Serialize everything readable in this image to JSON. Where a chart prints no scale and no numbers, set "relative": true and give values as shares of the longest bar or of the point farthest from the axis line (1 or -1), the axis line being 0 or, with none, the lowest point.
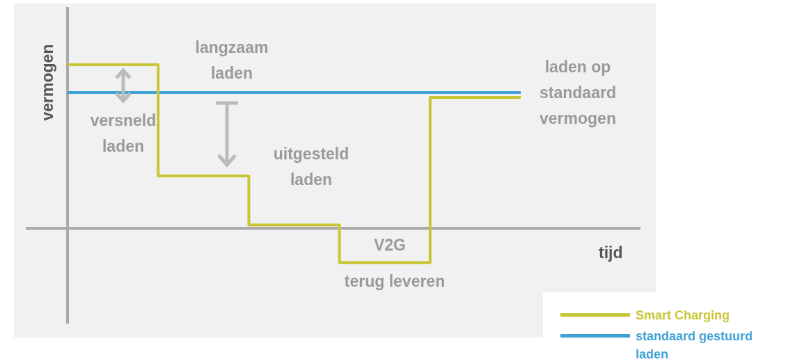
{
  "chart_data": {
    "type": "step",
    "relative": true,
    "xlabel": "tijd",
    "ylabel": "vermogen",
    "categories": [
      null,
      null,
      null,
      null,
      null,
      null
    ],
    "series": [
      {
        "name": "Smart Charging",
        "color": "#c9c636",
        "values": [
          1,
          0.32,
          0.02,
          -0.21,
          0.8,
          0.8
        ]
      },
      {
        "name": "standaard gestuurd laden",
        "color": "#3fa2d6",
        "values": [
          0.83,
          0.83,
          0.83,
          0.83,
          0.83,
          0.83
        ]
      }
    ],
    "annotations": [
      "langzaam laden",
      "versneld laden",
      "uitgesteld laden",
      "V2G",
      "terug leveren",
      "laden op standaard vermogen"
    ],
    "legend": "bottom right",
    "grid": false
  }
}
